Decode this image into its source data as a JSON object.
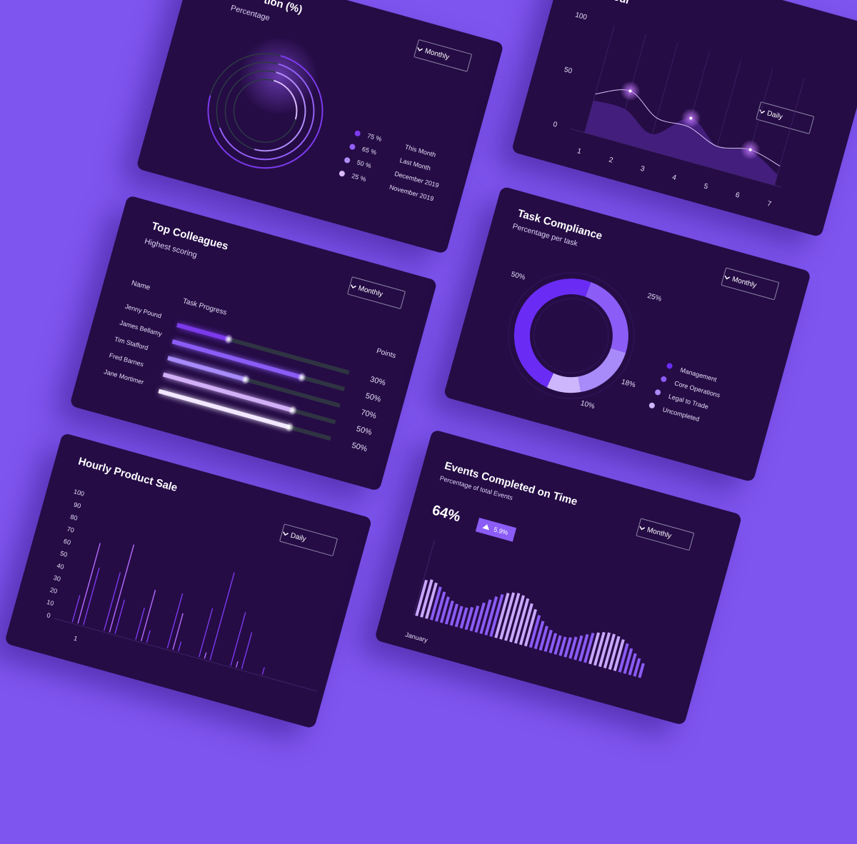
{
  "colors": {
    "background": "#7f55f0",
    "card": "#250c45",
    "accent": "#6d28f5",
    "accent2": "#8b5cf6",
    "accent3": "#a78bfa",
    "accent4": "#d6b8ff",
    "track": "#2f3442"
  },
  "completion_card": {
    "title_fragment": "tion (%)",
    "subtitle": "Percentage",
    "dropdown": "Monthly",
    "icon": "chevron-down-icon",
    "legend": [
      {
        "value": "75 %",
        "label": "This Month",
        "fraction": 0.75,
        "color": "#7c3aed"
      },
      {
        "value": "65 %",
        "label": "Last Month",
        "fraction": 0.65,
        "color": "#9360f5"
      },
      {
        "value": "50 %",
        "label": "December 2019",
        "fraction": 0.5,
        "color": "#b08cf8"
      },
      {
        "value": "25 %",
        "label": "November 2019",
        "fraction": 0.25,
        "color": "#d9b9fb"
      }
    ]
  },
  "hourly_line_card": {
    "title_fragment": "our",
    "dropdown": "Daily",
    "chart_data": {
      "type": "area",
      "x": [
        1,
        2,
        3,
        4,
        5,
        6,
        7
      ],
      "y_ticks": [
        "100",
        "50",
        "0"
      ],
      "x_ticks": [
        "1",
        "2",
        "3",
        "4",
        "5",
        "6",
        "7"
      ],
      "ylim": [
        0,
        100
      ],
      "series": [
        {
          "values": [
            36,
            47,
            30,
            30,
            20,
            25,
            18
          ]
        },
        {
          "values": [
            30,
            30,
            15,
            38,
            20,
            24,
            10
          ]
        }
      ]
    }
  },
  "top_colleagues": {
    "title": "Top Colleagues",
    "subtitle": "Highest scoring",
    "dropdown": "Monthly",
    "col_name": "Name",
    "col_progress": "Task Progress",
    "col_points": "Points",
    "rows": [
      {
        "name": "Jenny Pound",
        "progress": 0.3,
        "points": "30%",
        "color": "#7c3aed"
      },
      {
        "name": "James Bellamy",
        "progress": 0.75,
        "points": "50%",
        "color": "#8b5cf6"
      },
      {
        "name": "Tim Stafford",
        "progress": 0.45,
        "points": "70%",
        "color": "#a78bfa"
      },
      {
        "name": "Fred Barnes",
        "progress": 0.75,
        "points": "50%",
        "color": "#d2b0f7"
      },
      {
        "name": "Jane Mortimer",
        "progress": 0.76,
        "points": "50%",
        "color": "#f2e8ff"
      }
    ]
  },
  "task_compliance": {
    "title": "Task Compliance",
    "subtitle": "Percentage per task",
    "dropdown": "Monthly",
    "chart_data": {
      "type": "pie",
      "slices": [
        {
          "label": "Management",
          "value": 50,
          "text": "50%",
          "color": "#6a2cf5"
        },
        {
          "label": "Core Operations",
          "value": 25,
          "text": "25%",
          "color": "#8b5cf6"
        },
        {
          "label": "Legal to Trade",
          "value": 18,
          "text": "18%",
          "color": "#a98af9"
        },
        {
          "label": "Uncompleted",
          "value": 10,
          "text": "10%",
          "color": "#cdb6fc"
        }
      ]
    }
  },
  "hourly_product_sale": {
    "title": "Hourly Product Sale",
    "dropdown": "Daily",
    "chart_data": {
      "type": "bar",
      "y_ticks": [
        "100",
        "90",
        "80",
        "70",
        "60",
        "50",
        "40",
        "30",
        "20",
        "10",
        "0"
      ],
      "ylim": [
        0,
        100
      ],
      "x_tick": "1",
      "values": [
        22,
        66,
        47,
        48,
        72,
        28,
        26,
        42,
        10,
        45,
        30,
        8,
        40,
        5,
        72,
        44,
        5,
        30,
        6
      ]
    }
  },
  "events_completed": {
    "title": "Events Completed on Time",
    "subtitle": "Percentage of total Events",
    "big_value": "64%",
    "change": "5.9%",
    "change_icon": "triangle-up-icon",
    "dropdown": "Monthly",
    "chart_data": {
      "type": "bar",
      "x_label": "January",
      "values": [
        40,
        42,
        40,
        37,
        33,
        29,
        26,
        24,
        23,
        23,
        25,
        28,
        33,
        38,
        43,
        47,
        50,
        52,
        53,
        52,
        50,
        46,
        41,
        36,
        31,
        27,
        24,
        22,
        21,
        21,
        22,
        24,
        27,
        30,
        33,
        35,
        37,
        38,
        38,
        37,
        35,
        32,
        28,
        24,
        20,
        16
      ]
    }
  }
}
